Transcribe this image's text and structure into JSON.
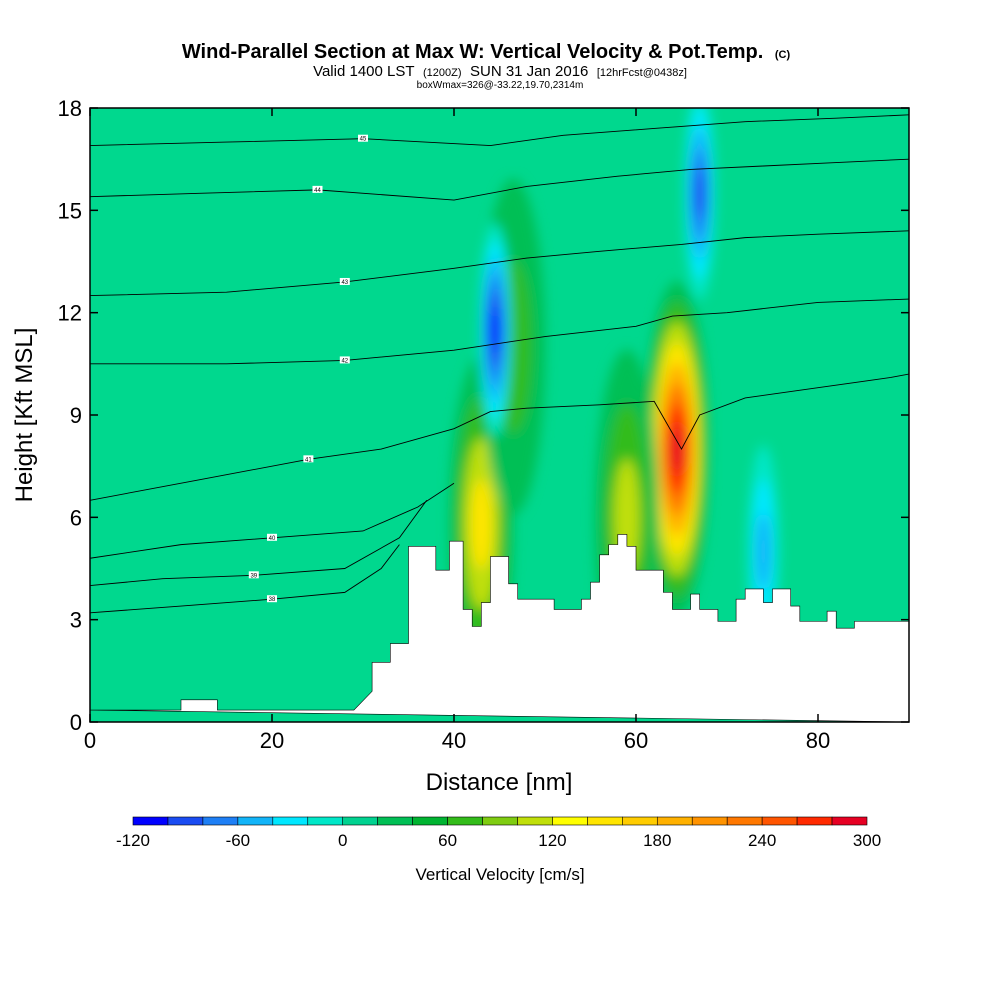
{
  "chart_data": {
    "type": "heatmap",
    "title": "Wind-Parallel Section at Max W: Vertical Velocity & Pot.Temp.",
    "title_mark": "(C)",
    "subtitle_parts": [
      "Valid 1400 LST",
      "(1200Z)",
      "SUN 31 Jan 2016",
      "[12hrFcst@0438z]"
    ],
    "subtitle2": "boxWmax=326@-33.22,19.70,2314m",
    "xlabel": "Distance [nm]",
    "ylabel": "Height [Kft MSL]",
    "xlim": [
      0,
      90
    ],
    "ylim": [
      0,
      18
    ],
    "xticks": [
      "0",
      "20",
      "40",
      "60",
      "80"
    ],
    "yticks": [
      "0",
      "3",
      "6",
      "9",
      "12",
      "15",
      "18"
    ],
    "colorbar": {
      "title": "Vertical Velocity [cm/s]",
      "tick_labels": [
        "-120",
        "-60",
        "0",
        "60",
        "120",
        "180",
        "240",
        "300"
      ],
      "range": [
        -120,
        300
      ],
      "step": 20,
      "colors": [
        "#0000ff",
        "#1a4cf2",
        "#1e7ff5",
        "#12b4f8",
        "#00e7ff",
        "#00e7c8",
        "#00d290",
        "#00bf55",
        "#00b431",
        "#33bc1a",
        "#7fcc11",
        "#c0df0a",
        "#ffff00",
        "#ffe500",
        "#ffcc00",
        "#ffb100",
        "#ff9300",
        "#ff7800",
        "#ff5500",
        "#ff2a00",
        "#e60023"
      ]
    },
    "terrain_kft": [
      [
        0,
        0.35
      ],
      [
        10,
        0.35
      ],
      [
        10,
        0.65
      ],
      [
        14,
        0.65
      ],
      [
        14,
        0.35
      ],
      [
        29,
        0.35
      ],
      [
        31,
        0.9
      ],
      [
        31,
        1.75
      ],
      [
        33,
        1.75
      ],
      [
        33,
        2.3
      ],
      [
        35,
        2.3
      ],
      [
        35,
        5.15
      ],
      [
        38,
        5.15
      ],
      [
        38,
        4.45
      ],
      [
        39.5,
        4.45
      ],
      [
        39.5,
        5.3
      ],
      [
        41,
        5.3
      ],
      [
        41,
        3.3
      ],
      [
        42,
        3.3
      ],
      [
        42,
        2.8
      ],
      [
        43,
        2.8
      ],
      [
        43,
        3.5
      ],
      [
        44,
        3.5
      ],
      [
        44,
        4.85
      ],
      [
        46,
        4.85
      ],
      [
        46,
        4.05
      ],
      [
        47,
        4.05
      ],
      [
        47,
        3.6
      ],
      [
        51,
        3.6
      ],
      [
        51,
        3.3
      ],
      [
        54,
        3.3
      ],
      [
        54,
        3.6
      ],
      [
        55,
        3.6
      ],
      [
        55,
        4.1
      ],
      [
        56,
        4.1
      ],
      [
        56,
        4.9
      ],
      [
        57,
        4.9
      ],
      [
        57,
        5.2
      ],
      [
        58,
        5.2
      ],
      [
        58,
        5.5
      ],
      [
        59,
        5.5
      ],
      [
        59,
        5.15
      ],
      [
        60,
        5.15
      ],
      [
        60,
        4.45
      ],
      [
        63,
        4.45
      ],
      [
        63,
        3.8
      ],
      [
        64,
        3.8
      ],
      [
        64,
        3.3
      ],
      [
        66,
        3.3
      ],
      [
        66,
        3.75
      ],
      [
        67,
        3.75
      ],
      [
        67,
        3.3
      ],
      [
        69,
        3.3
      ],
      [
        69,
        2.95
      ],
      [
        71,
        2.95
      ],
      [
        71,
        3.6
      ],
      [
        72,
        3.6
      ],
      [
        72,
        3.9
      ],
      [
        74,
        3.9
      ],
      [
        74,
        3.5
      ],
      [
        75,
        3.5
      ],
      [
        75,
        3.9
      ],
      [
        77,
        3.9
      ],
      [
        77,
        3.4
      ],
      [
        78,
        3.4
      ],
      [
        78,
        2.95
      ],
      [
        81,
        2.95
      ],
      [
        81,
        3.25
      ],
      [
        82,
        3.25
      ],
      [
        82,
        2.75
      ],
      [
        84,
        2.75
      ],
      [
        84,
        2.95
      ],
      [
        90,
        2.95
      ],
      [
        90,
        0
      ]
    ],
    "updrafts": [
      {
        "x": 64.5,
        "z": 8.0,
        "w_max": 300
      },
      {
        "x": 43,
        "z": 5.8,
        "w_max": 140
      },
      {
        "x": 59,
        "z": 6.0,
        "w_max": 100
      },
      {
        "x": 46.5,
        "z": 11,
        "w_max": 60
      }
    ],
    "downdrafts": [
      {
        "x": 44.5,
        "z": 11.5,
        "w_min": -120
      },
      {
        "x": 67,
        "z": 15.5,
        "w_min": -100
      },
      {
        "x": 74,
        "z": 5.0,
        "w_min": -60
      }
    ],
    "theta_contours": [
      {
        "label": "38",
        "points": [
          [
            0,
            3.2
          ],
          [
            10,
            3.4
          ],
          [
            20,
            3.6
          ],
          [
            28,
            3.8
          ],
          [
            32,
            4.5
          ],
          [
            34,
            5.2
          ]
        ]
      },
      {
        "label": "39",
        "points": [
          [
            0,
            4.0
          ],
          [
            8,
            4.2
          ],
          [
            18,
            4.3
          ],
          [
            28,
            4.5
          ],
          [
            34,
            5.4
          ],
          [
            37,
            6.5
          ]
        ]
      },
      {
        "label": "40",
        "points": [
          [
            0,
            4.8
          ],
          [
            10,
            5.2
          ],
          [
            20,
            5.4
          ],
          [
            30,
            5.6
          ],
          [
            36,
            6.3
          ],
          [
            40,
            7.0
          ]
        ]
      },
      {
        "label": "41",
        "points": [
          [
            0,
            6.5
          ],
          [
            12,
            7.1
          ],
          [
            24,
            7.7
          ],
          [
            32,
            8.0
          ],
          [
            40,
            8.6
          ],
          [
            44,
            9.1
          ],
          [
            48,
            9.2
          ],
          [
            56,
            9.3
          ],
          [
            62,
            9.4
          ],
          [
            65,
            8.0
          ],
          [
            67,
            9.0
          ],
          [
            72,
            9.5
          ],
          [
            80,
            9.8
          ],
          [
            88,
            10.1
          ],
          [
            90,
            10.2
          ]
        ]
      },
      {
        "label": "42",
        "points": [
          [
            0,
            10.5
          ],
          [
            15,
            10.5
          ],
          [
            28,
            10.6
          ],
          [
            40,
            10.9
          ],
          [
            50,
            11.3
          ],
          [
            60,
            11.6
          ],
          [
            64,
            11.9
          ],
          [
            70,
            12.0
          ],
          [
            80,
            12.3
          ],
          [
            90,
            12.4
          ]
        ]
      },
      {
        "label": "43",
        "points": [
          [
            0,
            12.5
          ],
          [
            15,
            12.6
          ],
          [
            28,
            12.9
          ],
          [
            40,
            13.3
          ],
          [
            48,
            13.6
          ],
          [
            56,
            13.8
          ],
          [
            65,
            14.0
          ],
          [
            72,
            14.2
          ],
          [
            80,
            14.3
          ],
          [
            90,
            14.4
          ]
        ]
      },
      {
        "label": "44",
        "points": [
          [
            0,
            15.4
          ],
          [
            12,
            15.5
          ],
          [
            25,
            15.6
          ],
          [
            40,
            15.3
          ],
          [
            48,
            15.7
          ],
          [
            58,
            16.0
          ],
          [
            66,
            16.2
          ],
          [
            74,
            16.3
          ],
          [
            82,
            16.4
          ],
          [
            90,
            16.5
          ]
        ]
      },
      {
        "label": "45",
        "points": [
          [
            0,
            16.9
          ],
          [
            15,
            17.0
          ],
          [
            30,
            17.1
          ],
          [
            44,
            16.9
          ],
          [
            52,
            17.2
          ],
          [
            62,
            17.4
          ],
          [
            72,
            17.6
          ],
          [
            82,
            17.7
          ],
          [
            90,
            17.8
          ]
        ]
      }
    ]
  }
}
